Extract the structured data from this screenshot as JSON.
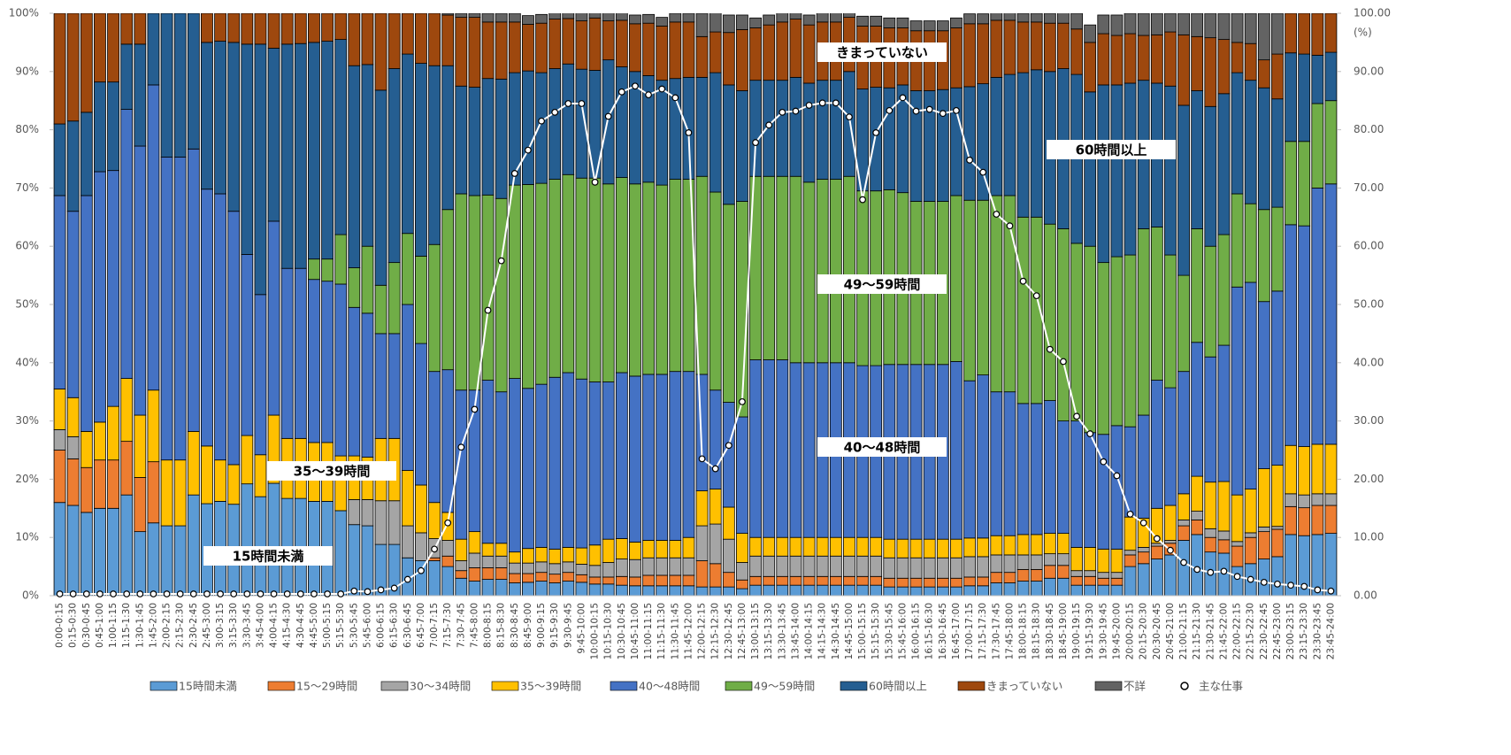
{
  "chart_data": {
    "type": "bar",
    "stacked": true,
    "categories": [
      "0:00-0:15",
      "0:15-0:30",
      "0:30-0:45",
      "0:45-1:00",
      "1:00-1:15",
      "1:15-1:30",
      "1:30-1:45",
      "1:45-2:00",
      "2:00-2:15",
      "2:15-2:30",
      "2:30-2:45",
      "2:45-3:00",
      "3:00-3:15",
      "3:15-3:30",
      "3:30-3:45",
      "3:45-4:00",
      "4:00-4:15",
      "4:15-4:30",
      "4:30-4:45",
      "4:45-5:00",
      "5:00-5:15",
      "5:15-5:30",
      "5:30-5:45",
      "5:45-6:00",
      "6:00-6:15",
      "6:15-6:30",
      "6:30-6:45",
      "6:45-7:00",
      "7:00-7:15",
      "7:15-7:30",
      "7:30-7:45",
      "7:45-8:00",
      "8:00-8:15",
      "8:15-8:30",
      "8:30-8:45",
      "8:45-9:00",
      "9:00-9:15",
      "9:15-9:30",
      "9:30-9:45",
      "9:45-10:00",
      "10:00-10:15",
      "10:15-10:30",
      "10:30-10:45",
      "10:45-11:00",
      "11:00-11:15",
      "11:15-11:30",
      "11:30-11:45",
      "11:45-12:00",
      "12:00-12:15",
      "12:15-12:30",
      "12:30-12:45",
      "12:45-13:00",
      "13:00-13:15",
      "13:15-13:30",
      "13:30-13:45",
      "13:45-14:00",
      "14:00-14:15",
      "14:15-14:30",
      "14:30-14:45",
      "14:45-15:00",
      "15:00-15:15",
      "15:15-15:30",
      "15:30-15:45",
      "15:45-16:00",
      "16:00-16:15",
      "16:15-16:30",
      "16:30-16:45",
      "16:45-17:00",
      "17:00-17:15",
      "17:15-17:30",
      "17:30-17:45",
      "17:45-18:00",
      "18:00-18:15",
      "18:15-18:30",
      "18:30-18:45",
      "18:45-19:00",
      "19:00-19:15",
      "19:15-19:30",
      "19:30-19:45",
      "19:45-20:00",
      "20:00-20:15",
      "20:15-20:30",
      "20:30-20:45",
      "20:45-21:00",
      "21:00-21:15",
      "21:15-21:30",
      "21:30-21:45",
      "21:45-22:00",
      "22:00-22:15",
      "22:15-22:30",
      "22:30-22:45",
      "22:45-23:00",
      "23:00-23:15",
      "23:15-23:30",
      "23:30-23:45",
      "23:45-24:00"
    ],
    "series": [
      {
        "name": "15時間未満",
        "color": "#5b9bd5",
        "values": [
          16,
          15.5,
          14.3,
          15,
          15,
          17.3,
          11,
          12.5,
          12,
          12,
          17.3,
          15.8,
          16.2,
          15.7,
          19.2,
          17,
          19.3,
          16.7,
          16.7,
          16.2,
          16.2,
          14.6,
          12.2,
          12,
          8.8,
          8.8,
          6.5,
          6,
          6,
          5,
          3,
          2.5,
          2.8,
          2.8,
          2.2,
          2.3,
          2.5,
          2.2,
          2.5,
          2.3,
          2,
          2,
          1.8,
          1.7,
          1.7,
          1.7,
          1.7,
          1.7,
          1.5,
          1.5,
          1.5,
          1.2,
          1.8,
          1.8,
          1.8,
          1.8,
          1.8,
          1.8,
          1.8,
          1.8,
          1.8,
          1.8,
          1.5,
          1.5,
          1.5,
          1.5,
          1.5,
          1.5,
          1.7,
          1.7,
          2.2,
          2.2,
          2.5,
          2.5,
          3,
          3,
          1.8,
          1.8,
          1.8,
          1.8,
          5,
          5.5,
          6.3,
          7,
          9.5,
          10.5,
          7.5,
          7.3,
          5,
          5.5,
          6.3,
          6.7,
          10.5,
          10.3,
          10.5,
          10.7
        ]
      },
      {
        "name": "15～29時間",
        "color": "#ed7d31",
        "values": [
          9,
          8,
          7.7,
          8.3,
          8.3,
          9.2,
          9.3,
          10.5,
          0,
          0,
          0,
          0,
          0,
          0,
          0,
          0,
          0,
          0,
          0,
          0,
          0,
          0,
          0,
          0,
          0,
          0,
          0,
          0,
          0.5,
          1.8,
          1.3,
          2.3,
          2,
          2,
          1.6,
          1.5,
          1.5,
          1.5,
          1.5,
          1.3,
          1.2,
          1.2,
          1.5,
          1.5,
          1.8,
          1.8,
          1.8,
          1.8,
          4.5,
          4,
          2.5,
          1.5,
          1.5,
          1.5,
          1.5,
          1.5,
          1.5,
          1.5,
          1.5,
          1.5,
          1.5,
          1.5,
          1.5,
          1.5,
          1.5,
          1.5,
          1.5,
          1.5,
          1.5,
          1.5,
          1.8,
          1.8,
          2,
          2,
          2.2,
          2.2,
          1.5,
          1.5,
          1.2,
          1.2,
          2,
          2,
          2.2,
          2,
          2.5,
          2.5,
          2.5,
          2.3,
          3.5,
          4.5,
          4.7,
          4.7,
          4.8,
          4.8,
          5,
          4.8
        ]
      },
      {
        "name": "30～34時間",
        "color": "#a5a5a5",
        "values": [
          3.5,
          3.8,
          0,
          0,
          0,
          0,
          0,
          0,
          0,
          0,
          0,
          0,
          0,
          0,
          0,
          0,
          0,
          0,
          0,
          0,
          0,
          0,
          4.3,
          4.5,
          7.5,
          7.5,
          5.5,
          4.8,
          3.3,
          2.7,
          1.7,
          2.5,
          2,
          2,
          1.8,
          1.8,
          1.8,
          1.8,
          1.8,
          1.8,
          2,
          2.5,
          3,
          3,
          3,
          3,
          3,
          3,
          6,
          6.8,
          5.7,
          3,
          3.5,
          3.5,
          3.5,
          3.5,
          3.5,
          3.5,
          3.5,
          3.5,
          3.5,
          3.5,
          3.5,
          3.5,
          3.5,
          3.5,
          3.5,
          3.5,
          3.5,
          3.5,
          3,
          3,
          2.5,
          2.5,
          2,
          2,
          1,
          1,
          1,
          1,
          0.8,
          0.8,
          0.5,
          0.5,
          1,
          1.5,
          1.5,
          1.5,
          0.8,
          0.8,
          0.8,
          0.5,
          2.2,
          2.2,
          2,
          2
        ]
      },
      {
        "name": "35～39時間",
        "color": "#ffc000",
        "values": [
          7,
          6.7,
          6.2,
          6.5,
          9.2,
          10.8,
          10.7,
          12.3,
          11.3,
          11.3,
          10.9,
          9.9,
          7.1,
          6.8,
          8.3,
          7.2,
          11.7,
          10.3,
          10.3,
          10.1,
          10.1,
          9.4,
          7.5,
          7.3,
          10.7,
          10.7,
          9.5,
          8.2,
          6.2,
          4.8,
          3.7,
          3.7,
          2.2,
          2.2,
          1.9,
          2.5,
          2.5,
          2.5,
          2.5,
          2.8,
          3.5,
          4,
          3.5,
          3,
          3,
          3,
          3,
          3.5,
          6,
          6,
          5.5,
          5,
          3.2,
          3.2,
          3.2,
          3.2,
          3.2,
          3.2,
          3.2,
          3.2,
          3.2,
          3.2,
          3.2,
          3.2,
          3.2,
          3.2,
          3.2,
          3.2,
          3.2,
          3.2,
          3.3,
          3.3,
          3.5,
          3.5,
          3.5,
          3.5,
          4,
          4,
          4,
          4,
          5.7,
          5,
          6,
          6,
          4.5,
          6,
          8,
          8.5,
          8,
          7.5,
          10,
          10.5,
          8.3,
          8.3,
          8.5,
          8.5
        ]
      },
      {
        "name": "40～48時間",
        "color": "#4472c4",
        "values": [
          33.2,
          32,
          40.5,
          43,
          40.5,
          46.2,
          46.2,
          52.4,
          52,
          52,
          48.5,
          44.1,
          45.7,
          43.5,
          31.1,
          27.5,
          33.3,
          29.2,
          29.2,
          28,
          27.7,
          29.5,
          25.5,
          24.7,
          18,
          18,
          28.5,
          24.3,
          22.5,
          24.5,
          25.6,
          24.3,
          28,
          26,
          29.8,
          27.5,
          28,
          29.5,
          30,
          29,
          28,
          27,
          28.5,
          28.5,
          28.5,
          28.5,
          29,
          28.5,
          20,
          17,
          18,
          20,
          30.5,
          30.5,
          30.5,
          30,
          30,
          30,
          30,
          30,
          29.5,
          29.5,
          30,
          30,
          30,
          30,
          30,
          30.5,
          27,
          28,
          24.7,
          24.7,
          22.5,
          22.5,
          22.8,
          19.3,
          21.7,
          19.7,
          19.7,
          21.2,
          15.5,
          17.7,
          22,
          20.2,
          21,
          23,
          21.5,
          23.4,
          35.7,
          35.5,
          28.7,
          29.9,
          37.9,
          37.9,
          44,
          44.7
        ]
      },
      {
        "name": "49～59時間",
        "color": "#70ad47",
        "values": [
          0,
          0,
          0,
          0,
          0,
          0,
          0,
          0,
          0,
          0,
          0,
          0,
          0,
          0,
          0,
          0,
          0,
          0,
          0,
          3.5,
          3.8,
          8.5,
          6.8,
          11.5,
          8.3,
          12.2,
          12.2,
          15,
          21.8,
          27.5,
          33.7,
          33.4,
          31.8,
          33.2,
          33.2,
          35,
          34.5,
          34,
          34,
          34.5,
          35,
          34,
          33.5,
          33,
          33,
          32.5,
          33,
          33,
          34,
          34,
          34,
          37,
          31.5,
          31.5,
          31.5,
          32,
          31,
          31.5,
          31.5,
          32,
          30,
          30,
          30,
          29.5,
          28,
          28,
          28,
          28.5,
          31,
          30,
          33.7,
          33.7,
          32,
          32,
          30.3,
          33,
          30.5,
          32,
          29.5,
          29,
          29.5,
          32,
          26.3,
          22.8,
          16.5,
          19.5,
          19,
          19,
          16,
          13.5,
          15.8,
          14.4,
          14.3,
          14.5,
          14.5,
          14.3
        ]
      },
      {
        "name": "60時間以上",
        "color": "#255e91",
        "values": [
          12.3,
          15.5,
          14.3,
          15.4,
          15.2,
          11.2,
          17.5,
          12.3,
          24.7,
          24.7,
          23.3,
          25.2,
          26.2,
          29,
          36.1,
          43,
          29.7,
          38.5,
          38.6,
          37.2,
          37.4,
          33.5,
          34.7,
          31.2,
          33.5,
          33.3,
          30.8,
          33.1,
          30.7,
          24.7,
          18.5,
          18.6,
          20,
          20.5,
          19.3,
          19.5,
          19,
          19,
          19,
          18.7,
          18.5,
          21.3,
          19,
          19.3,
          18.3,
          18,
          17.3,
          17.5,
          17,
          20.5,
          20.5,
          19,
          16.5,
          16.5,
          16.5,
          17,
          17,
          17,
          17,
          18,
          17.5,
          17.8,
          17.5,
          18.5,
          19,
          19,
          19.2,
          18.5,
          19.5,
          20,
          20.3,
          20.8,
          24.8,
          25.3,
          26.2,
          27.5,
          29,
          26.5,
          30.5,
          29.5,
          29.5,
          25.5,
          24.7,
          29,
          29.2,
          23.7,
          24,
          24.2,
          20.8,
          21.2,
          20.9,
          18.6,
          15.2,
          15,
          8.3,
          8.3
        ]
      },
      {
        "name": "きまっていない",
        "color": "#9e480e",
        "values": [
          19,
          18.5,
          17,
          11.8,
          11.8,
          5.3,
          5.3,
          0,
          0,
          0,
          0,
          5,
          4.8,
          5,
          5.3,
          5.3,
          6,
          5.3,
          5.2,
          5,
          4.8,
          4.5,
          9,
          8.8,
          13.2,
          9.5,
          7,
          8.6,
          9,
          8.7,
          11.8,
          12,
          9.7,
          9.8,
          8.7,
          8,
          8.5,
          8.5,
          7.8,
          8.3,
          9,
          6.7,
          8,
          8.2,
          9,
          9.3,
          9.7,
          9.5,
          7,
          7,
          9,
          10.5,
          9,
          9.5,
          10,
          10,
          10,
          10,
          10,
          9.3,
          10.8,
          10.5,
          10.3,
          9.8,
          10.3,
          10.3,
          10.1,
          10.3,
          10.8,
          10.3,
          9.8,
          9.3,
          8.7,
          8.2,
          8.3,
          7.8,
          7.8,
          8.5,
          8.8,
          8.5,
          8.5,
          7.7,
          8.3,
          9.3,
          12.1,
          9.3,
          11.8,
          9.3,
          5.2,
          6.3,
          4.8,
          7.7,
          6.8,
          7,
          7.2,
          6.7
        ]
      },
      {
        "name": "不詳",
        "color": "#636363",
        "values": [
          0,
          0,
          0,
          0,
          0,
          0,
          0,
          0,
          0,
          0,
          0,
          0,
          0,
          0,
          0,
          0,
          0,
          0,
          0,
          0,
          0,
          0,
          0,
          0,
          0,
          0,
          0,
          0,
          0,
          0.3,
          0.7,
          0.7,
          1.5,
          1.5,
          1.5,
          1.5,
          1.5,
          1.5,
          1.5,
          1.5,
          1.5,
          1.5,
          1.5,
          1.5,
          1.5,
          1.5,
          1.5,
          1.5,
          4,
          3.5,
          3,
          2.5,
          1.7,
          1.7,
          1.7,
          1.7,
          1.7,
          1.7,
          1.7,
          1.7,
          1.7,
          1.7,
          1.7,
          1.7,
          1.7,
          1.7,
          1.7,
          1.7,
          1.7,
          1.7,
          1.7,
          1.7,
          1.5,
          1.5,
          1.7,
          2,
          2.7,
          3,
          3.2,
          3.5,
          3.5,
          3.8,
          3.7,
          3.2,
          3.7,
          4,
          4.2,
          4.5,
          5,
          5.2,
          8,
          7,
          0,
          0,
          0,
          0
        ]
      },
      {
        "name": "主な仕事",
        "color": "#ffffff",
        "axis": "y2",
        "type": "line",
        "values": [
          0.3,
          0.3,
          0.3,
          0.3,
          0.3,
          0.3,
          0.3,
          0.3,
          0.3,
          0.3,
          0.3,
          0.3,
          0.3,
          0.3,
          0.3,
          0.3,
          0.3,
          0.3,
          0.3,
          0.3,
          0.3,
          0.3,
          0.8,
          0.7,
          1,
          1.3,
          2.8,
          4.3,
          8,
          12.5,
          25.5,
          32,
          49,
          57.5,
          72.5,
          76.5,
          81.5,
          83,
          84.5,
          84.5,
          71,
          82.3,
          86.5,
          87.5,
          86,
          87,
          85.5,
          79.5,
          23.5,
          21.8,
          25.8,
          33.3,
          77.8,
          80.8,
          83,
          83.2,
          84.2,
          84.6,
          84.6,
          82.2,
          68,
          79.5,
          83.3,
          85.5,
          83.2,
          83.5,
          82.8,
          83.3,
          74.8,
          72.7,
          65.5,
          63.5,
          54,
          51.5,
          42.3,
          40.2,
          30.8,
          27.8,
          23,
          20.6,
          14,
          12.5,
          9.8,
          7.8,
          5.7,
          4.5,
          4,
          4.2,
          3.3,
          2.8,
          2.3,
          2,
          1.8,
          1.6,
          1,
          0.8
        ]
      }
    ],
    "ylim": [
      0,
      100
    ],
    "yticks": [
      {
        "value": 0,
        "label": "0%"
      },
      {
        "value": 10,
        "label": "10%"
      },
      {
        "value": 20,
        "label": "20%"
      },
      {
        "value": 30,
        "label": "30%"
      },
      {
        "value": 40,
        "label": "40%"
      },
      {
        "value": 50,
        "label": "50%"
      },
      {
        "value": 60,
        "label": "60%"
      },
      {
        "value": 70,
        "label": "70%"
      },
      {
        "value": 80,
        "label": "80%"
      },
      {
        "value": 90,
        "label": "90%"
      },
      {
        "value": 100,
        "label": "100%"
      }
    ],
    "y2lim": [
      0,
      100
    ],
    "y2ticks": [
      {
        "value": 0,
        "label": "0.00"
      },
      {
        "value": 10,
        "label": "10.00"
      },
      {
        "value": 20,
        "label": "20.00"
      },
      {
        "value": 30,
        "label": "30.00"
      },
      {
        "value": 40,
        "label": "40.00"
      },
      {
        "value": 50,
        "label": "50.00"
      },
      {
        "value": 60,
        "label": "60.00"
      },
      {
        "value": 70,
        "label": "70.00"
      },
      {
        "value": 80,
        "label": "80.00"
      },
      {
        "value": 90,
        "label": "90.00"
      },
      {
        "value": 100,
        "label": "100.00"
      }
    ],
    "y2label": "(%)",
    "annotations": [
      "きまっていない",
      "60時間以上",
      "49～59時間",
      "40～48時間",
      "35～39時間",
      "15時間未満"
    ],
    "legend": "bottom"
  }
}
